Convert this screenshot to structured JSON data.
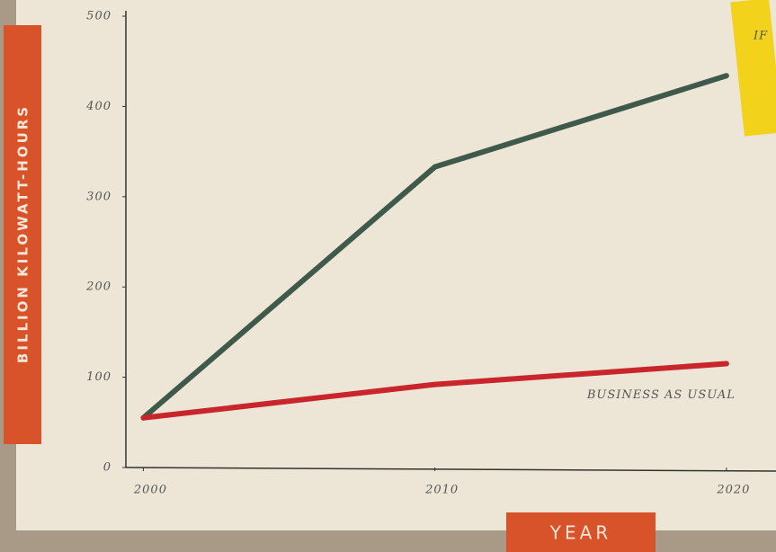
{
  "chart_data": {
    "type": "line",
    "x": [
      2000,
      2010,
      2020
    ],
    "series": [
      {
        "color": "#3f5a4a",
        "values": [
          55,
          333,
          434
        ]
      },
      {
        "name": "BUSINESS AS USUAL",
        "color": "#c8262c",
        "values": [
          55,
          92,
          115
        ]
      }
    ],
    "xlim": [
      1999.4,
      2021.7
    ],
    "xticks": [
      2000,
      2010,
      2020
    ],
    "ylim": [
      0,
      500
    ],
    "yticks": [
      0,
      100,
      200,
      300,
      400,
      500
    ],
    "xlabel": "YEAR",
    "ylabel": "BILLION KILOWATT-HOURS",
    "note": "IF"
  }
}
